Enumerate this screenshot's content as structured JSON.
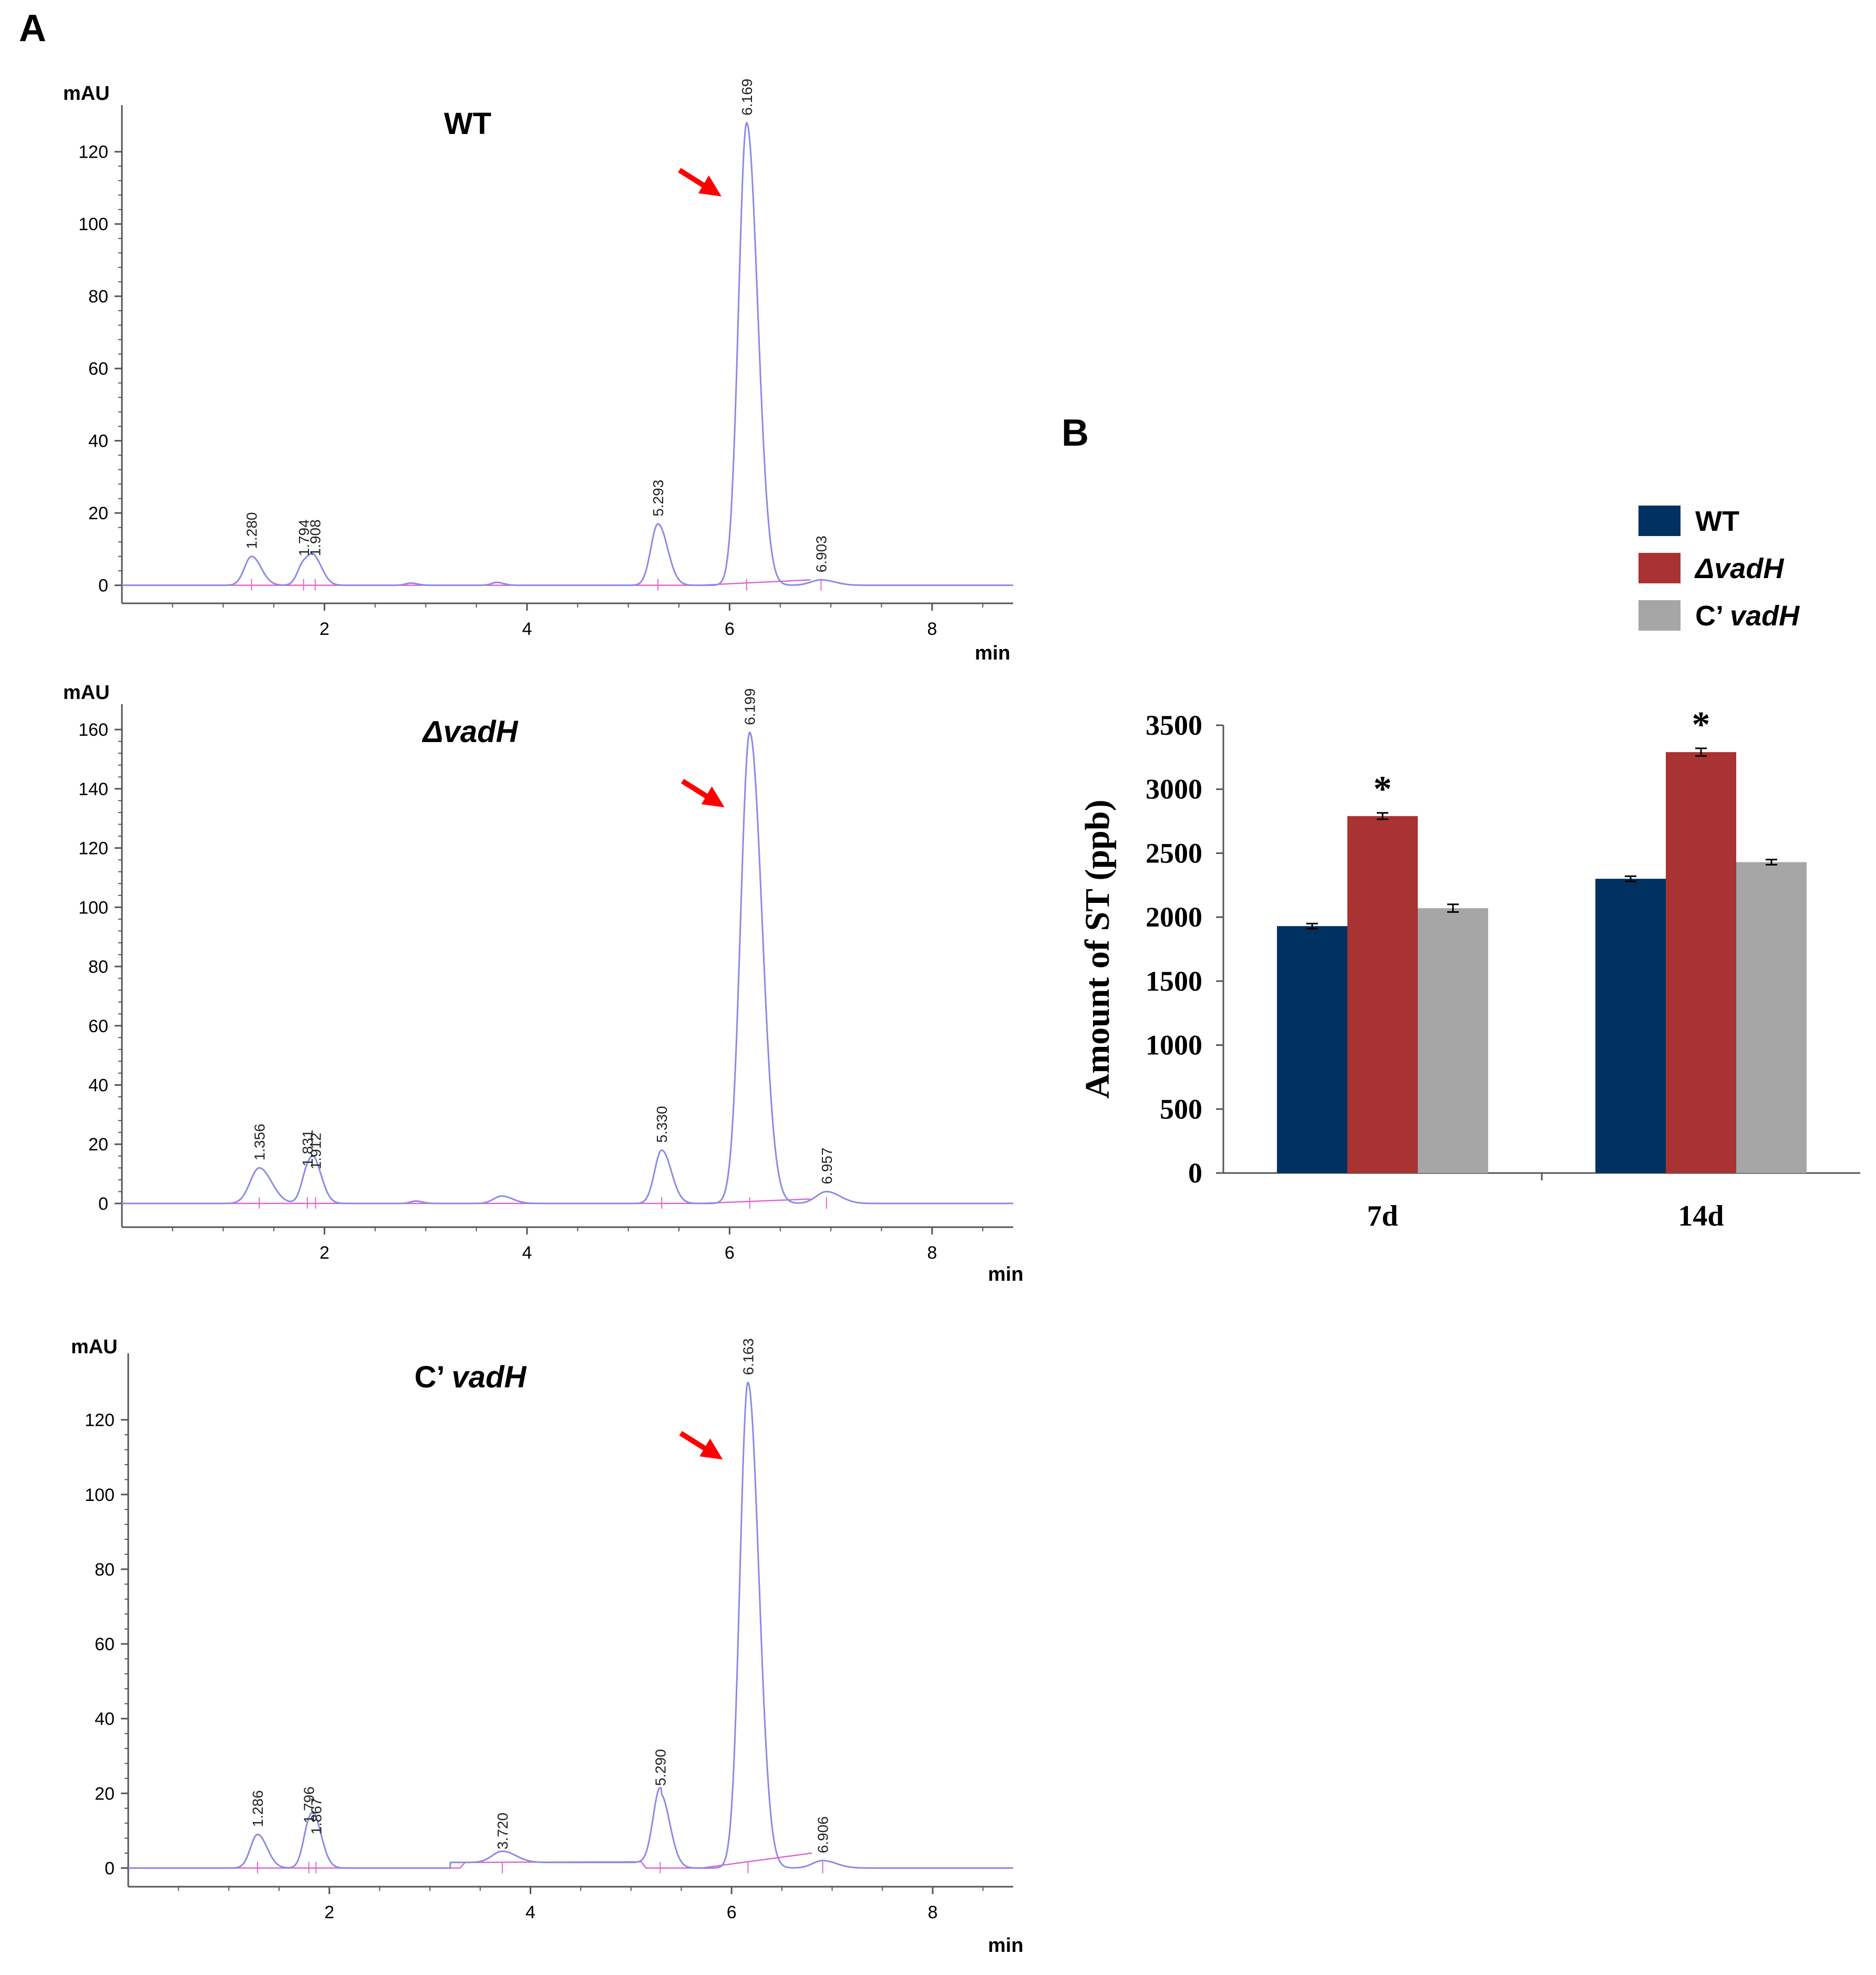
{
  "panels": {
    "a_label": "A",
    "b_label": "B"
  },
  "colors": {
    "trace": "#8a8ae6",
    "baseline": "#e066cc",
    "arrow": "#ff0000",
    "axis": "#555555",
    "wt": "#013160",
    "dvadh": "#a93232",
    "cvadh": "#a6a6a6"
  },
  "chart_data": [
    {
      "type": "line",
      "title": "WT",
      "ylabel": "mAU",
      "xlabel": "min",
      "xlim": [
        0,
        8.8
      ],
      "ylim": [
        -5,
        130
      ],
      "xticks": [
        "2",
        "4",
        "6",
        "8"
      ],
      "yticks": [
        "0",
        "20",
        "40",
        "60",
        "80",
        "100",
        "120"
      ],
      "peaks": [
        {
          "rt": 1.28,
          "label": "1.280",
          "height": 8,
          "sigma": 0.07
        },
        {
          "rt": 1.794,
          "label": "1.794",
          "height": 6,
          "sigma": 0.06
        },
        {
          "rt": 1.908,
          "label": "1.908",
          "height": 6,
          "sigma": 0.06
        },
        {
          "rt": 2.85,
          "label": "",
          "height": 0.6,
          "sigma": 0.05
        },
        {
          "rt": 3.7,
          "label": "",
          "height": 0.8,
          "sigma": 0.05
        },
        {
          "rt": 5.293,
          "label": "5.293",
          "height": 17,
          "sigma": 0.07
        },
        {
          "rt": 6.169,
          "label": "6.169",
          "height": 128,
          "sigma": 0.08
        },
        {
          "rt": 6.903,
          "label": "6.903",
          "height": 1.5,
          "sigma": 0.1
        }
      ],
      "main_peak_rt": 6.169
    },
    {
      "type": "line",
      "title_prefix": "Δ",
      "title": "vadH",
      "ylabel": "mAU",
      "xlabel": "min",
      "xlim": [
        0,
        8.8
      ],
      "ylim": [
        -8,
        165
      ],
      "xticks": [
        "2",
        "4",
        "6",
        "8"
      ],
      "yticks": [
        "0",
        "20",
        "40",
        "60",
        "80",
        "100",
        "120",
        "140",
        "160"
      ],
      "peaks": [
        {
          "rt": 1.356,
          "label": "1.356",
          "height": 12,
          "sigma": 0.09
        },
        {
          "rt": 1.831,
          "label": "1.831",
          "height": 10,
          "sigma": 0.06
        },
        {
          "rt": 1.912,
          "label": "1.912",
          "height": 9,
          "sigma": 0.06
        },
        {
          "rt": 2.9,
          "label": "",
          "height": 0.8,
          "sigma": 0.05
        },
        {
          "rt": 3.75,
          "label": "",
          "height": 2.5,
          "sigma": 0.08
        },
        {
          "rt": 5.33,
          "label": "5.330",
          "height": 18,
          "sigma": 0.07
        },
        {
          "rt": 6.199,
          "label": "6.199",
          "height": 159,
          "sigma": 0.09
        },
        {
          "rt": 6.957,
          "label": "6.957",
          "height": 4,
          "sigma": 0.1
        }
      ],
      "main_peak_rt": 6.199
    },
    {
      "type": "line",
      "title": "C’ vadH",
      "title_plain": "C’ ",
      "title_italic": "vadH",
      "ylabel": "mAU",
      "xlabel": "min",
      "xlim": [
        0,
        8.8
      ],
      "ylim": [
        -5,
        135
      ],
      "xticks": [
        "2",
        "4",
        "6",
        "8"
      ],
      "yticks": [
        "0",
        "20",
        "40",
        "60",
        "80",
        "100",
        "120"
      ],
      "peaks": [
        {
          "rt": 1.286,
          "label": "1.286",
          "height": 9,
          "sigma": 0.07
        },
        {
          "rt": 1.796,
          "label": "1.796",
          "height": 10,
          "sigma": 0.06
        },
        {
          "rt": 1.867,
          "label": "1.867",
          "height": 7,
          "sigma": 0.06
        },
        {
          "rt": 3.72,
          "label": "3.720",
          "height": 3,
          "sigma": 0.1
        },
        {
          "rt": 5.29,
          "label": "5.290",
          "height": 20,
          "sigma": 0.07
        },
        {
          "rt": 6.163,
          "label": "6.163",
          "height": 130,
          "sigma": 0.08
        },
        {
          "rt": 6.906,
          "label": "6.906",
          "height": 2,
          "sigma": 0.1
        }
      ],
      "main_peak_rt": 6.163
    },
    {
      "type": "bar",
      "ylabel": "Amount of ST (ppb)",
      "ylim": [
        0,
        3500
      ],
      "yticks": [
        "0",
        "500",
        "1000",
        "1500",
        "2000",
        "2500",
        "3000",
        "3500"
      ],
      "categories": [
        "7d",
        "14d"
      ],
      "series": [
        {
          "name": "WT",
          "values": [
            1930,
            2300
          ],
          "errors": [
            20,
            20
          ]
        },
        {
          "name": "ΔvadH",
          "values": [
            2790,
            3290
          ],
          "errors": [
            25,
            30
          ]
        },
        {
          "name": "C’ vadH",
          "values": [
            2070,
            2430
          ],
          "errors": [
            30,
            20
          ]
        }
      ],
      "significance": [
        "*",
        "*"
      ],
      "legend": {
        "position": "top-right",
        "entries": [
          {
            "plain": "WT",
            "italic": ""
          },
          {
            "plain": "Δ",
            "italic": "vadH"
          },
          {
            "plain": "C’ ",
            "italic": "vadH"
          }
        ]
      }
    }
  ]
}
